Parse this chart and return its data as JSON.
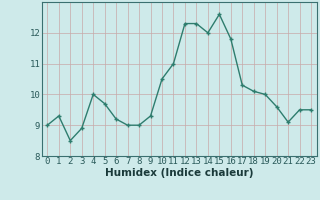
{
  "x": [
    0,
    1,
    2,
    3,
    4,
    5,
    6,
    7,
    8,
    9,
    10,
    11,
    12,
    13,
    14,
    15,
    16,
    17,
    18,
    19,
    20,
    21,
    22,
    23
  ],
  "y": [
    9.0,
    9.3,
    8.5,
    8.9,
    10.0,
    9.7,
    9.2,
    9.0,
    9.0,
    9.3,
    10.5,
    11.0,
    12.3,
    12.3,
    12.0,
    12.6,
    11.8,
    10.3,
    10.1,
    10.0,
    9.6,
    9.1,
    9.5,
    9.5
  ],
  "line_color": "#2e7d6e",
  "marker": "D",
  "marker_size": 2.5,
  "bg_color": "#ceeaea",
  "grid_major_color": "#b8cece",
  "grid_minor_color": "#d8e8e8",
  "xlabel": "Humidex (Indice chaleur)",
  "ylim": [
    8,
    13
  ],
  "xlim": [
    -0.5,
    23.5
  ],
  "yticks": [
    8,
    9,
    10,
    11,
    12
  ],
  "xticks": [
    0,
    1,
    2,
    3,
    4,
    5,
    6,
    7,
    8,
    9,
    10,
    11,
    12,
    13,
    14,
    15,
    16,
    17,
    18,
    19,
    20,
    21,
    22,
    23
  ],
  "xlabel_fontsize": 7.5,
  "tick_fontsize": 6.5,
  "line_width": 1.0,
  "spine_color": "#3a7070"
}
